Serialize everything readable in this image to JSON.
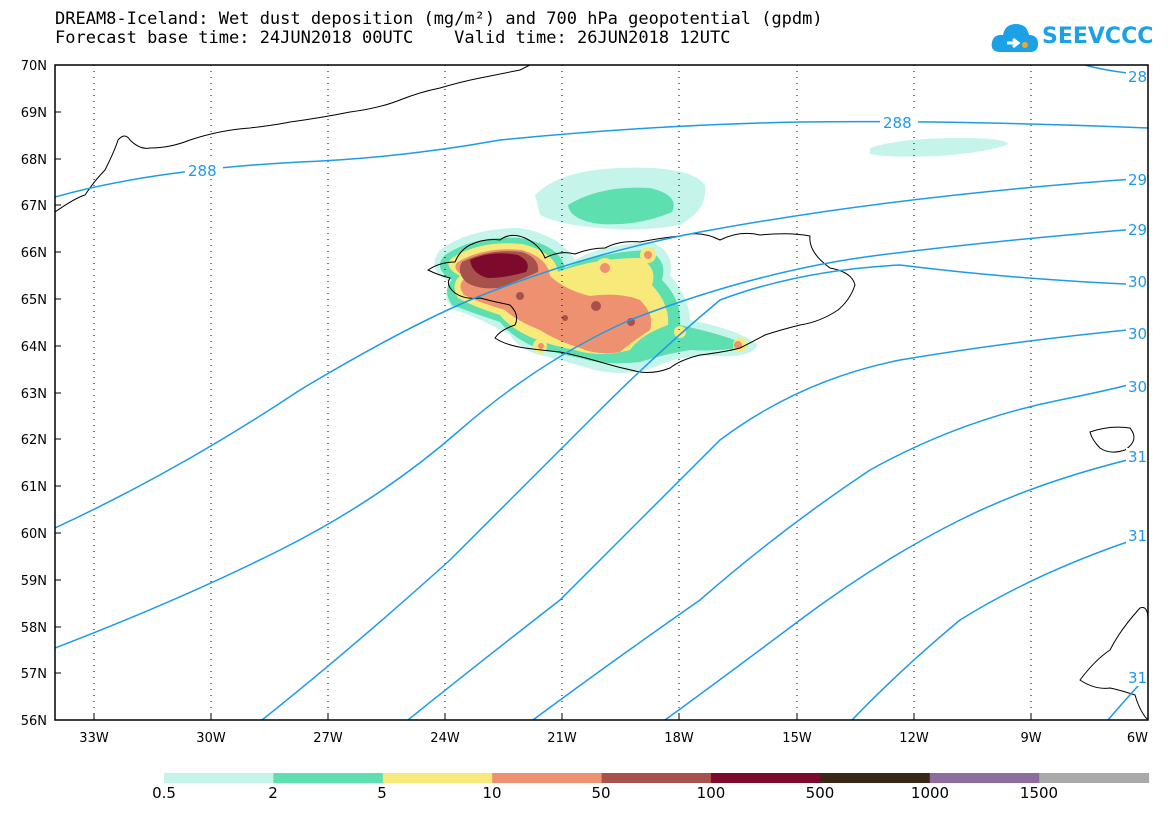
{
  "title_line1": "DREAM8-Iceland: Wet dust deposition (mg/m²) and 700 hPa geopotential (gpdm)",
  "title_line2": "Forecast base time: 24JUN2018 00UTC    Valid time: 26JUN2018 12UTC",
  "logo_text": "SEEVCCC",
  "lat_labels": [
    "70N",
    "69N",
    "68N",
    "67N",
    "66N",
    "65N",
    "64N",
    "63N",
    "62N",
    "61N",
    "60N",
    "59N",
    "58N",
    "57N",
    "56N"
  ],
  "lon_labels": [
    "33W",
    "30W",
    "27W",
    "24W",
    "21W",
    "18W",
    "15W",
    "12W",
    "9W",
    "6W"
  ],
  "contour_labels": [
    "288",
    "288",
    "28",
    "29",
    "29",
    "30",
    "30",
    "30",
    "31",
    "31",
    "31"
  ],
  "legend": {
    "labels": [
      "0.5",
      "2",
      "5",
      "10",
      "50",
      "100",
      "500",
      "1000",
      "1500"
    ],
    "colors": [
      "#c5f4ea",
      "#5ddfb0",
      "#f7ea7a",
      "#ee9170",
      "#a6514c",
      "#7d0a2c",
      "#3a2817",
      "#8f6c9e",
      "#a9a9a9"
    ]
  },
  "colors": {
    "contour": "#1e9be8",
    "coast": "#000000"
  }
}
